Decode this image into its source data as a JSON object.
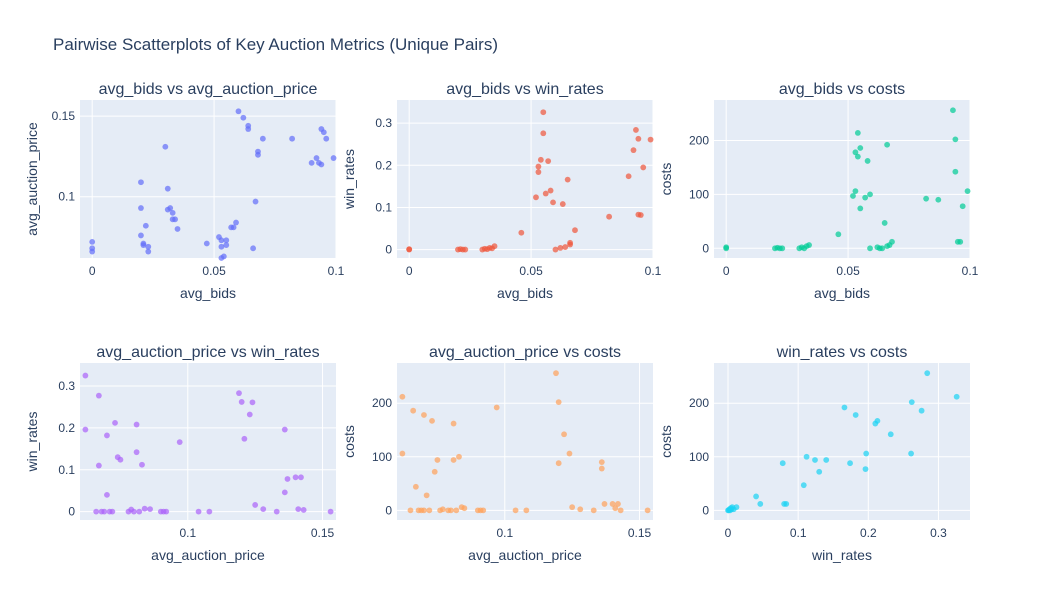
{
  "title": "Pairwise Scatterplots of Key Auction Metrics (Unique Pairs)",
  "chart_data": [
    {
      "type": "scatter",
      "title": "avg_bids vs avg_auction_price",
      "xlabel": "avg_bids",
      "ylabel": "avg_auction_price",
      "color": "#636EFA",
      "xlim": [
        -0.005,
        0.1
      ],
      "ylim": [
        0.062,
        0.16
      ],
      "xticks": [
        0,
        0.05,
        0.1
      ],
      "xtick_labels": [
        "0",
        "0.05",
        "0.1"
      ],
      "yticks": [
        0.1,
        0.15
      ],
      "ytick_labels": [
        "0.1",
        "0.15"
      ],
      "points": [
        [
          0,
          0.066
        ],
        [
          0,
          0.068
        ],
        [
          0,
          0.072
        ],
        [
          0.02,
          0.109
        ],
        [
          0.02,
          0.093
        ],
        [
          0.02,
          0.076
        ],
        [
          0.021,
          0.07
        ],
        [
          0.021,
          0.071
        ],
        [
          0.022,
          0.082
        ],
        [
          0.023,
          0.066
        ],
        [
          0.023,
          0.069
        ],
        [
          0.03,
          0.131
        ],
        [
          0.031,
          0.105
        ],
        [
          0.031,
          0.092
        ],
        [
          0.032,
          0.093
        ],
        [
          0.033,
          0.086
        ],
        [
          0.033,
          0.09
        ],
        [
          0.034,
          0.086
        ],
        [
          0.035,
          0.08
        ],
        [
          0.047,
          0.071
        ],
        [
          0.052,
          0.075
        ],
        [
          0.053,
          0.073
        ],
        [
          0.053,
          0.069
        ],
        [
          0.053,
          0.062
        ],
        [
          0.054,
          0.063
        ],
        [
          0.055,
          0.07
        ],
        [
          0.055,
          0.073
        ],
        [
          0.057,
          0.081
        ],
        [
          0.058,
          0.081
        ],
        [
          0.059,
          0.084
        ],
        [
          0.06,
          0.153
        ],
        [
          0.062,
          0.149
        ],
        [
          0.064,
          0.142
        ],
        [
          0.064,
          0.144
        ],
        [
          0.066,
          0.068
        ],
        [
          0.067,
          0.097
        ],
        [
          0.068,
          0.128
        ],
        [
          0.068,
          0.126
        ],
        [
          0.07,
          0.136
        ],
        [
          0.082,
          0.136
        ],
        [
          0.09,
          0.121
        ],
        [
          0.092,
          0.124
        ],
        [
          0.093,
          0.121
        ],
        [
          0.094,
          0.12
        ],
        [
          0.094,
          0.142
        ],
        [
          0.095,
          0.14
        ],
        [
          0.096,
          0.136
        ],
        [
          0.099,
          0.124
        ]
      ]
    },
    {
      "type": "scatter",
      "title": "avg_bids vs win_rates",
      "xlabel": "avg_bids",
      "ylabel": "win_rates",
      "color": "#EF553B",
      "xlim": [
        -0.005,
        0.1
      ],
      "ylim": [
        -0.02,
        0.355
      ],
      "xticks": [
        0,
        0.05,
        0.1
      ],
      "xtick_labels": [
        "0",
        "0.05",
        "0.1"
      ],
      "yticks": [
        0,
        0.1,
        0.2,
        0.3
      ],
      "ytick_labels": [
        "0",
        "0.1",
        "0.2",
        "0.3"
      ],
      "points": [
        [
          0,
          0
        ],
        [
          0,
          0.001
        ],
        [
          0.02,
          0
        ],
        [
          0.021,
          0.001
        ],
        [
          0.022,
          0
        ],
        [
          0.023,
          0
        ],
        [
          0.03,
          0
        ],
        [
          0.031,
          0.002
        ],
        [
          0.032,
          0.001
        ],
        [
          0.033,
          0.004
        ],
        [
          0.034,
          0.003
        ],
        [
          0.035,
          0.008
        ],
        [
          0.046,
          0.04
        ],
        [
          0.052,
          0.124
        ],
        [
          0.053,
          0.197
        ],
        [
          0.053,
          0.184
        ],
        [
          0.054,
          0.213
        ],
        [
          0.055,
          0.326
        ],
        [
          0.055,
          0.276
        ],
        [
          0.056,
          0.133
        ],
        [
          0.057,
          0.21
        ],
        [
          0.058,
          0.14
        ],
        [
          0.059,
          0.112
        ],
        [
          0.06,
          0
        ],
        [
          0.062,
          0.004
        ],
        [
          0.063,
          0.108
        ],
        [
          0.064,
          0.006
        ],
        [
          0.065,
          0.166
        ],
        [
          0.066,
          0.012
        ],
        [
          0.066,
          0.016
        ],
        [
          0.068,
          0.046
        ],
        [
          0.082,
          0.078
        ],
        [
          0.09,
          0.174
        ],
        [
          0.092,
          0.236
        ],
        [
          0.093,
          0.284
        ],
        [
          0.094,
          0.263
        ],
        [
          0.094,
          0.083
        ],
        [
          0.095,
          0.082
        ],
        [
          0.096,
          0.195
        ],
        [
          0.099,
          0.261
        ]
      ]
    },
    {
      "type": "scatter",
      "title": "avg_bids vs costs",
      "xlabel": "avg_bids",
      "ylabel": "costs",
      "color": "#00CC96",
      "xlim": [
        -0.005,
        0.1
      ],
      "ylim": [
        -18,
        275
      ],
      "xticks": [
        0,
        0.05,
        0.1
      ],
      "xtick_labels": [
        "0",
        "0.05",
        "0.1"
      ],
      "yticks": [
        0,
        100,
        200
      ],
      "ytick_labels": [
        "0",
        "100",
        "200"
      ],
      "points": [
        [
          0,
          0
        ],
        [
          0,
          2
        ],
        [
          0.02,
          0
        ],
        [
          0.021,
          1
        ],
        [
          0.022,
          0
        ],
        [
          0.023,
          0
        ],
        [
          0.03,
          0
        ],
        [
          0.031,
          2
        ],
        [
          0.032,
          0
        ],
        [
          0.033,
          4
        ],
        [
          0.034,
          6
        ],
        [
          0.046,
          26
        ],
        [
          0.052,
          97
        ],
        [
          0.053,
          106
        ],
        [
          0.053,
          178
        ],
        [
          0.054,
          170
        ],
        [
          0.054,
          214
        ],
        [
          0.055,
          186
        ],
        [
          0.055,
          74
        ],
        [
          0.057,
          94
        ],
        [
          0.058,
          162
        ],
        [
          0.059,
          100
        ],
        [
          0.059,
          0
        ],
        [
          0.062,
          2
        ],
        [
          0.063,
          0
        ],
        [
          0.064,
          0
        ],
        [
          0.065,
          47
        ],
        [
          0.066,
          192
        ],
        [
          0.066,
          4
        ],
        [
          0.067,
          6
        ],
        [
          0.068,
          12
        ],
        [
          0.082,
          92
        ],
        [
          0.087,
          90
        ],
        [
          0.093,
          256
        ],
        [
          0.094,
          142
        ],
        [
          0.094,
          202
        ],
        [
          0.095,
          12
        ],
        [
          0.096,
          12
        ],
        [
          0.097,
          78
        ],
        [
          0.099,
          106
        ]
      ]
    },
    {
      "type": "scatter",
      "title": "avg_auction_price vs win_rates",
      "xlabel": "avg_auction_price",
      "ylabel": "win_rates",
      "color": "#AB63FA",
      "xlim": [
        0.06,
        0.155
      ],
      "ylim": [
        -0.02,
        0.355
      ],
      "xticks": [
        0.1,
        0.15
      ],
      "xtick_labels": [
        "0.1",
        "0.15"
      ],
      "yticks": [
        0,
        0.1,
        0.2,
        0.3
      ],
      "ytick_labels": [
        "0",
        "0.1",
        "0.2",
        "0.3"
      ],
      "points": [
        [
          0.062,
          0.325
        ],
        [
          0.062,
          0.196
        ],
        [
          0.066,
          0
        ],
        [
          0.067,
          0.11
        ],
        [
          0.067,
          0.277
        ],
        [
          0.068,
          0
        ],
        [
          0.069,
          0
        ],
        [
          0.07,
          0.182
        ],
        [
          0.07,
          0.04
        ],
        [
          0.071,
          0
        ],
        [
          0.072,
          0
        ],
        [
          0.073,
          0.212
        ],
        [
          0.074,
          0.13
        ],
        [
          0.075,
          0.124
        ],
        [
          0.078,
          0
        ],
        [
          0.079,
          0.005
        ],
        [
          0.08,
          0
        ],
        [
          0.081,
          0.208
        ],
        [
          0.081,
          0.142
        ],
        [
          0.082,
          0
        ],
        [
          0.083,
          0.112
        ],
        [
          0.084,
          0.007
        ],
        [
          0.086,
          0.006
        ],
        [
          0.09,
          0
        ],
        [
          0.091,
          0
        ],
        [
          0.092,
          0
        ],
        [
          0.097,
          0.166
        ],
        [
          0.104,
          0
        ],
        [
          0.108,
          0
        ],
        [
          0.119,
          0.283
        ],
        [
          0.12,
          0.262
        ],
        [
          0.121,
          0.174
        ],
        [
          0.123,
          0.232
        ],
        [
          0.124,
          0.261
        ],
        [
          0.125,
          0.016
        ],
        [
          0.128,
          0.006
        ],
        [
          0.133,
          0
        ],
        [
          0.136,
          0.196
        ],
        [
          0.136,
          0.046
        ],
        [
          0.137,
          0.078
        ],
        [
          0.14,
          0.082
        ],
        [
          0.141,
          0.006
        ],
        [
          0.142,
          0.082
        ],
        [
          0.143,
          0.004
        ],
        [
          0.153,
          0
        ]
      ]
    },
    {
      "type": "scatter",
      "title": "avg_auction_price vs costs",
      "xlabel": "avg_auction_price",
      "ylabel": "costs",
      "color": "#FFA15A",
      "xlim": [
        0.06,
        0.155
      ],
      "ylim": [
        -18,
        275
      ],
      "xticks": [
        0.1,
        0.15
      ],
      "xtick_labels": [
        "0.1",
        "0.15"
      ],
      "yticks": [
        0,
        100,
        200
      ],
      "ytick_labels": [
        "0",
        "100",
        "200"
      ],
      "points": [
        [
          0.062,
          212
        ],
        [
          0.062,
          106
        ],
        [
          0.065,
          0
        ],
        [
          0.066,
          186
        ],
        [
          0.067,
          44
        ],
        [
          0.068,
          0
        ],
        [
          0.069,
          0
        ],
        [
          0.07,
          0
        ],
        [
          0.07,
          178
        ],
        [
          0.071,
          28
        ],
        [
          0.072,
          0
        ],
        [
          0.073,
          167
        ],
        [
          0.074,
          72
        ],
        [
          0.075,
          94
        ],
        [
          0.076,
          0
        ],
        [
          0.077,
          2
        ],
        [
          0.079,
          0
        ],
        [
          0.08,
          0
        ],
        [
          0.081,
          162
        ],
        [
          0.081,
          94
        ],
        [
          0.082,
          0
        ],
        [
          0.083,
          100
        ],
        [
          0.084,
          6
        ],
        [
          0.085,
          4
        ],
        [
          0.09,
          0
        ],
        [
          0.091,
          0
        ],
        [
          0.092,
          0
        ],
        [
          0.097,
          192
        ],
        [
          0.104,
          0
        ],
        [
          0.108,
          0
        ],
        [
          0.119,
          256
        ],
        [
          0.12,
          202
        ],
        [
          0.12,
          88
        ],
        [
          0.122,
          142
        ],
        [
          0.124,
          106
        ],
        [
          0.125,
          6
        ],
        [
          0.128,
          2
        ],
        [
          0.133,
          0
        ],
        [
          0.136,
          90
        ],
        [
          0.136,
          78
        ],
        [
          0.137,
          12
        ],
        [
          0.14,
          12
        ],
        [
          0.141,
          4
        ],
        [
          0.142,
          12
        ],
        [
          0.143,
          0
        ],
        [
          0.153,
          0
        ]
      ]
    },
    {
      "type": "scatter",
      "title": "win_rates vs costs",
      "xlabel": "win_rates",
      "ylabel": "costs",
      "color": "#19D3F3",
      "xlim": [
        -0.02,
        0.345
      ],
      "ylim": [
        -18,
        275
      ],
      "xticks": [
        0,
        0.1,
        0.2,
        0.3
      ],
      "xtick_labels": [
        "0",
        "0.1",
        "0.2",
        "0.3"
      ],
      "yticks": [
        0,
        100,
        200
      ],
      "ytick_labels": [
        "0",
        "100",
        "200"
      ],
      "points": [
        [
          0,
          0
        ],
        [
          0.001,
          0
        ],
        [
          0.002,
          2
        ],
        [
          0.003,
          0
        ],
        [
          0.004,
          4
        ],
        [
          0.005,
          2
        ],
        [
          0.006,
          6
        ],
        [
          0.008,
          2
        ],
        [
          0.012,
          6
        ],
        [
          0.04,
          26
        ],
        [
          0.046,
          12
        ],
        [
          0.078,
          88
        ],
        [
          0.08,
          12
        ],
        [
          0.083,
          12
        ],
        [
          0.108,
          47
        ],
        [
          0.112,
          100
        ],
        [
          0.124,
          94
        ],
        [
          0.13,
          72
        ],
        [
          0.14,
          94
        ],
        [
          0.166,
          192
        ],
        [
          0.174,
          88
        ],
        [
          0.182,
          178
        ],
        [
          0.196,
          77
        ],
        [
          0.197,
          106
        ],
        [
          0.21,
          162
        ],
        [
          0.213,
          167
        ],
        [
          0.232,
          142
        ],
        [
          0.261,
          106
        ],
        [
          0.262,
          202
        ],
        [
          0.276,
          186
        ],
        [
          0.284,
          256
        ],
        [
          0.326,
          212
        ]
      ]
    }
  ]
}
